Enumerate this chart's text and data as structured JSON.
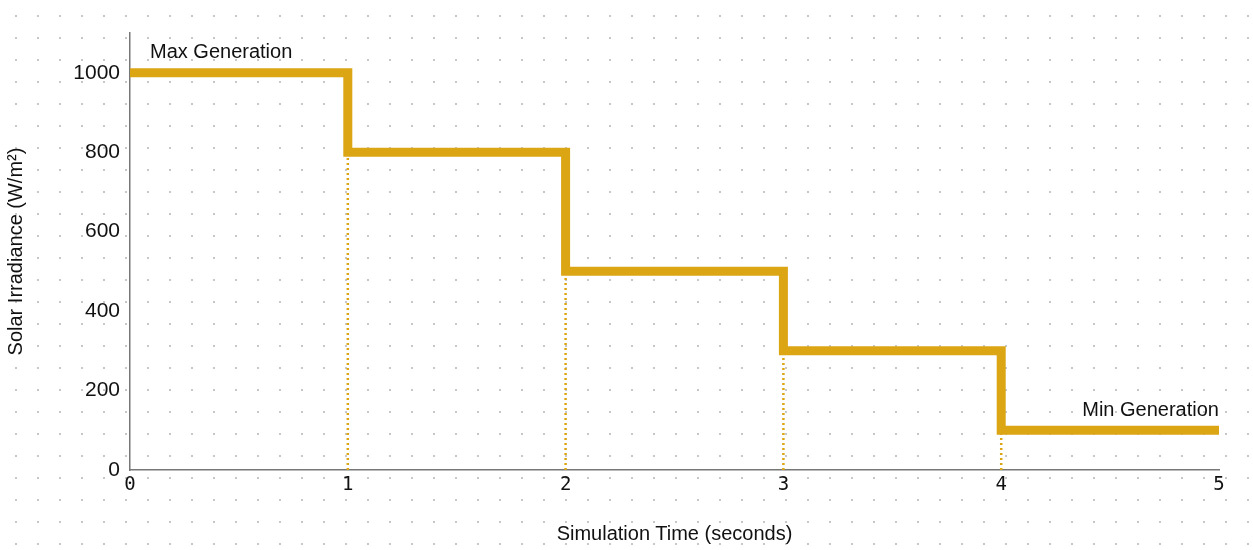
{
  "chart_data": {
    "type": "step",
    "xlabel": "Simulation Time (seconds)",
    "ylabel": "Solar Irradiance (W/m²)",
    "x": [
      0,
      1,
      2,
      3,
      4,
      5
    ],
    "series": [
      {
        "color": "#dba514",
        "values": [
          1000,
          800,
          500,
          300,
          100,
          100
        ]
      }
    ],
    "xlim": [
      0,
      5
    ],
    "xticks": [
      0,
      1,
      2,
      3,
      4,
      5
    ],
    "ylim": [
      0,
      1100
    ],
    "yticks": [
      0,
      200,
      400,
      600,
      800,
      1000
    ],
    "ref_lines": [
      {
        "axis": "x",
        "value": 1,
        "color": "#dba514",
        "line_style": "dotted"
      },
      {
        "axis": "x",
        "value": 2,
        "color": "#dba514",
        "line_style": "dotted"
      },
      {
        "axis": "x",
        "value": 3,
        "color": "#dba514",
        "line_style": "dotted"
      },
      {
        "axis": "x",
        "value": 4,
        "color": "#dba514",
        "line_style": "dotted"
      }
    ],
    "annotations": [
      {
        "text": "Max Generation",
        "x": 0,
        "y": 1000
      },
      {
        "text": "Min Generation",
        "x": 5,
        "y": 100
      }
    ],
    "grid": false,
    "legend": false,
    "marker": "none",
    "line_style": "solid"
  }
}
